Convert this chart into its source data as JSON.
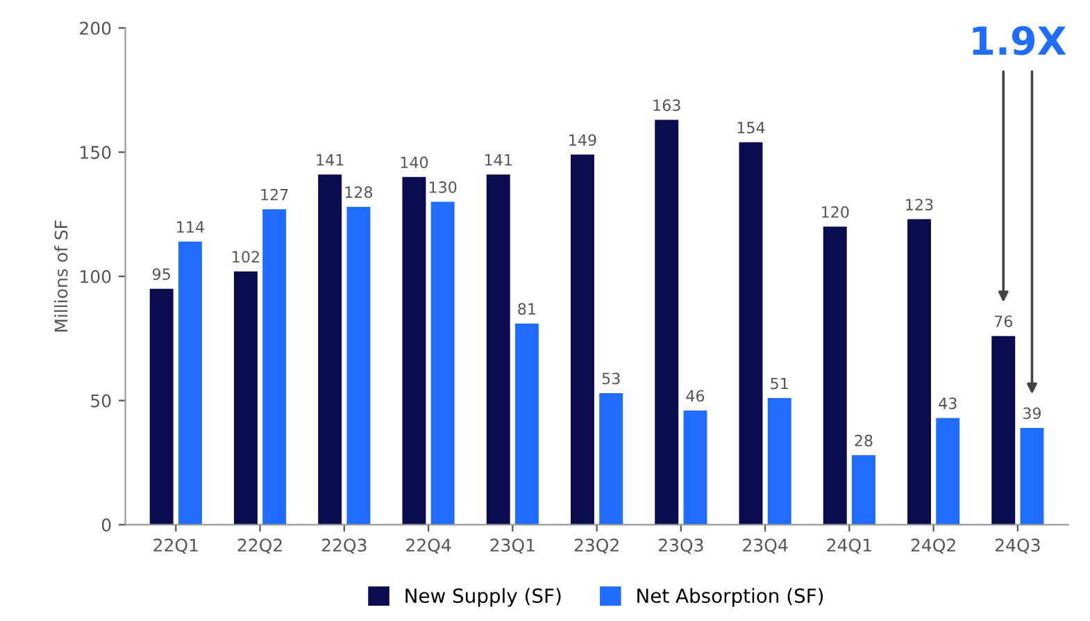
{
  "chart_data": {
    "type": "bar",
    "ylabel": "Millions of SF",
    "categories": [
      "22Q1",
      "22Q2",
      "22Q3",
      "22Q4",
      "23Q1",
      "23Q2",
      "23Q3",
      "23Q4",
      "24Q1",
      "24Q2",
      "24Q3"
    ],
    "series": [
      {
        "name": "New Supply (SF)",
        "color": "#0b0b4f",
        "values": [
          95,
          102,
          141,
          140,
          141,
          149,
          163,
          154,
          120,
          123,
          76
        ]
      },
      {
        "name": "Net Absorption (SF)",
        "color": "#1f6cff",
        "values": [
          114,
          127,
          128,
          130,
          81,
          53,
          46,
          51,
          28,
          43,
          39
        ]
      }
    ],
    "ylim": [
      0,
      200
    ],
    "yticks": [
      0,
      50,
      100,
      150,
      200
    ],
    "grid": false,
    "legend": "bottom",
    "data_labels": true,
    "annotations": [
      "1.9X"
    ]
  }
}
